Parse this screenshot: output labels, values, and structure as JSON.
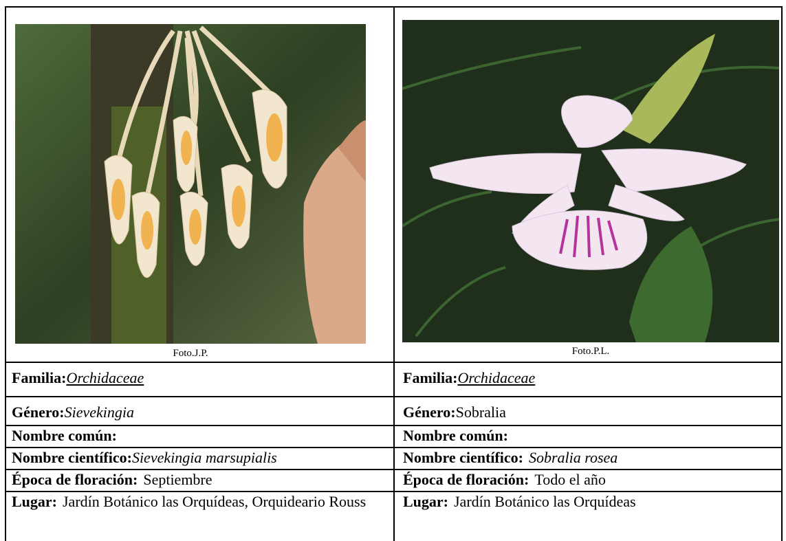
{
  "photos": [
    {
      "caption": "Foto.J.P."
    },
    {
      "caption": "Foto.P.L."
    }
  ],
  "table": {
    "rows": [
      [
        {
          "label": "Familia:",
          "value": "Orchidaceae"
        },
        {
          "label": "Familia:",
          "value": "Orchidaceae"
        }
      ],
      [
        {
          "label": "Género:",
          "value": "Sievekingia"
        },
        {
          "label": "Género:",
          "value": "Sobralia"
        }
      ],
      [
        {
          "label": "Nombre común:"
        },
        {
          "label": "Nombre común:"
        }
      ],
      [
        {
          "label": "Nombre científico:",
          "value": "Sievekingia marsupialis"
        },
        {
          "label": "Nombre científico:",
          "value": "Sobralia rosea"
        }
      ],
      [
        {
          "label": "Época de floración:",
          "value": "Septiembre"
        },
        {
          "label": "Época de floración:",
          "value": "Todo el año"
        }
      ],
      [
        {
          "label": "Lugar:",
          "value": "Jardín Botánico las Orquídeas, Orquideario Rouss"
        },
        {
          "label": "Lugar:",
          "value": "Jardín Botánico las Orquídeas"
        }
      ]
    ]
  }
}
